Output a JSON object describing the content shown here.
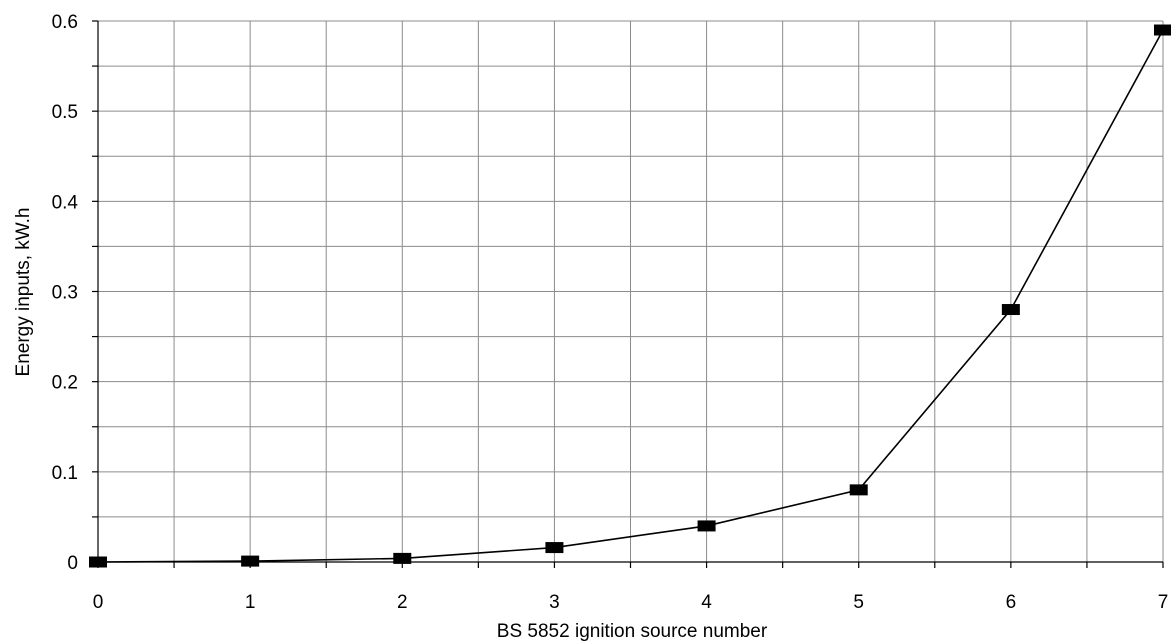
{
  "chart_data": {
    "type": "line",
    "title": "",
    "xlabel": "BS 5852 ignition source number",
    "ylabel": "Energy inputs, kW.h",
    "x": [
      0,
      1,
      2,
      3,
      4,
      5,
      6,
      7
    ],
    "series": [
      {
        "values": [
          0.0,
          0.001,
          0.004,
          0.016,
          0.04,
          0.08,
          0.28,
          0.59
        ]
      }
    ],
    "xlim": [
      0,
      7
    ],
    "ylim": [
      0,
      0.6
    ],
    "xticks": [
      "0",
      "1",
      "2",
      "3",
      "4",
      "5",
      "6",
      "7"
    ],
    "yticks": [
      "0",
      "0.1",
      "0.2",
      "0.3",
      "0.4",
      "0.5",
      "0.6"
    ],
    "grid": true,
    "legend": "none",
    "marker": "square",
    "line_color": "#000000",
    "grid_color": "#8c8c8c"
  }
}
